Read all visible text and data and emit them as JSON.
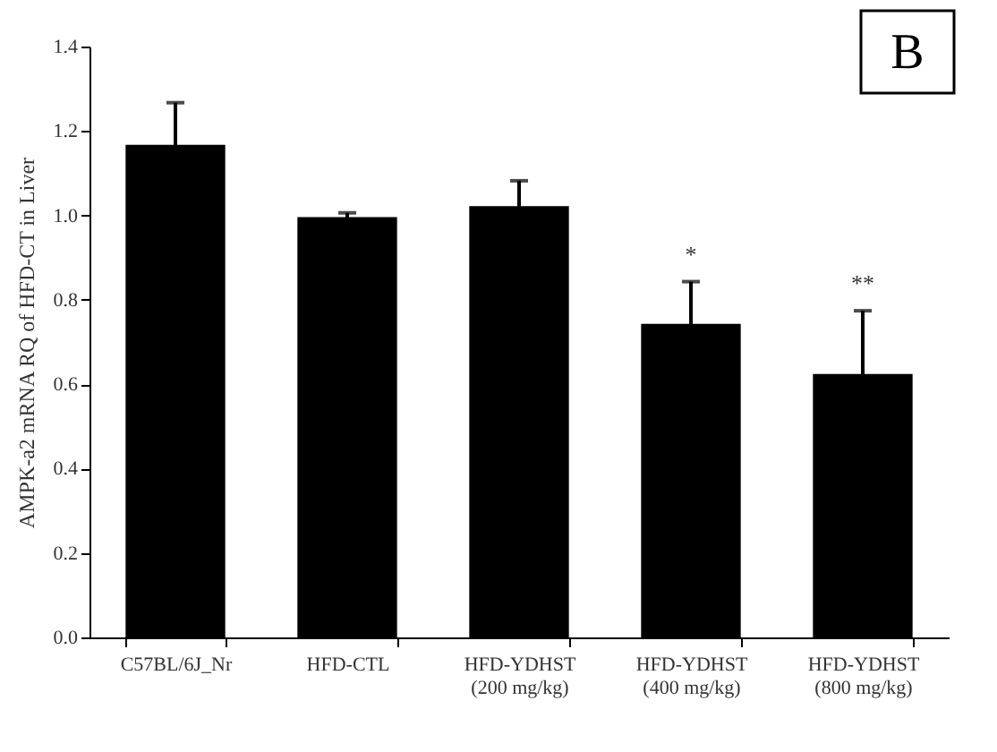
{
  "chart_data": {
    "type": "bar",
    "ylabel": "AMPK-a2  mRNA  RQ of HFD-CT  in Liver",
    "categories": [
      "C57BL/6J_Nr",
      "HFD-CTL",
      "HFD-YDHST\n(200 mg/kg)",
      "HFD-YDHST\n(400 mg/kg)",
      "HFD-YDHST\n(800 mg/kg)"
    ],
    "values": [
      1.167,
      0.996,
      1.022,
      0.743,
      0.624
    ],
    "errors": [
      0.1,
      0.01,
      0.06,
      0.1,
      0.15
    ],
    "color": "#000000",
    "ylim": [
      0,
      1.4
    ],
    "yticks": [
      {
        "value": 0,
        "label": "0.0"
      },
      0.2,
      0.4,
      0.6,
      0.8,
      {
        "value": 1,
        "label": "1.0"
      },
      1.2,
      1.4
    ],
    "grid": false,
    "annotations": [
      "B",
      "*",
      "**"
    ]
  }
}
